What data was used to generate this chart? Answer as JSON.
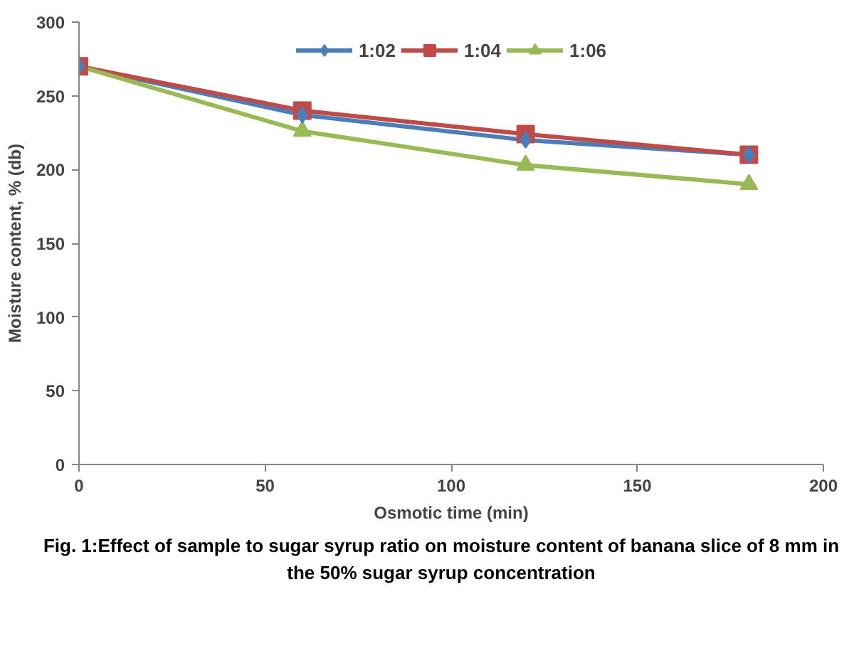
{
  "chart_data": {
    "type": "line",
    "xlabel": "Osmotic time (min)",
    "ylabel": "Moisture content, % (db)",
    "x": [
      0,
      60,
      120,
      180
    ],
    "series": [
      {
        "name": "1:02",
        "color": "#4a7ebb",
        "marker": "diamond",
        "values": [
          270,
          237,
          220,
          210
        ]
      },
      {
        "name": "1:04",
        "color": "#be4b48",
        "marker": "square",
        "values": [
          270,
          240,
          224,
          210
        ]
      },
      {
        "name": "1:06",
        "color": "#98b954",
        "marker": "triangle",
        "values": [
          270,
          226,
          203,
          190
        ]
      }
    ],
    "xlim": [
      0,
      200
    ],
    "xticks": [
      0,
      50,
      100,
      150,
      200
    ],
    "ylim": [
      0,
      300
    ],
    "yticks": [
      0,
      50,
      100,
      150,
      200,
      250,
      300
    ],
    "grid": false,
    "legend": "top",
    "line_style": "solid",
    "annotations": [
      "Fig. 1:Effect of sample to sugar syrup ratio on moisture content of banana slice of 8 mm in the 50% sugar syrup concentration"
    ]
  }
}
